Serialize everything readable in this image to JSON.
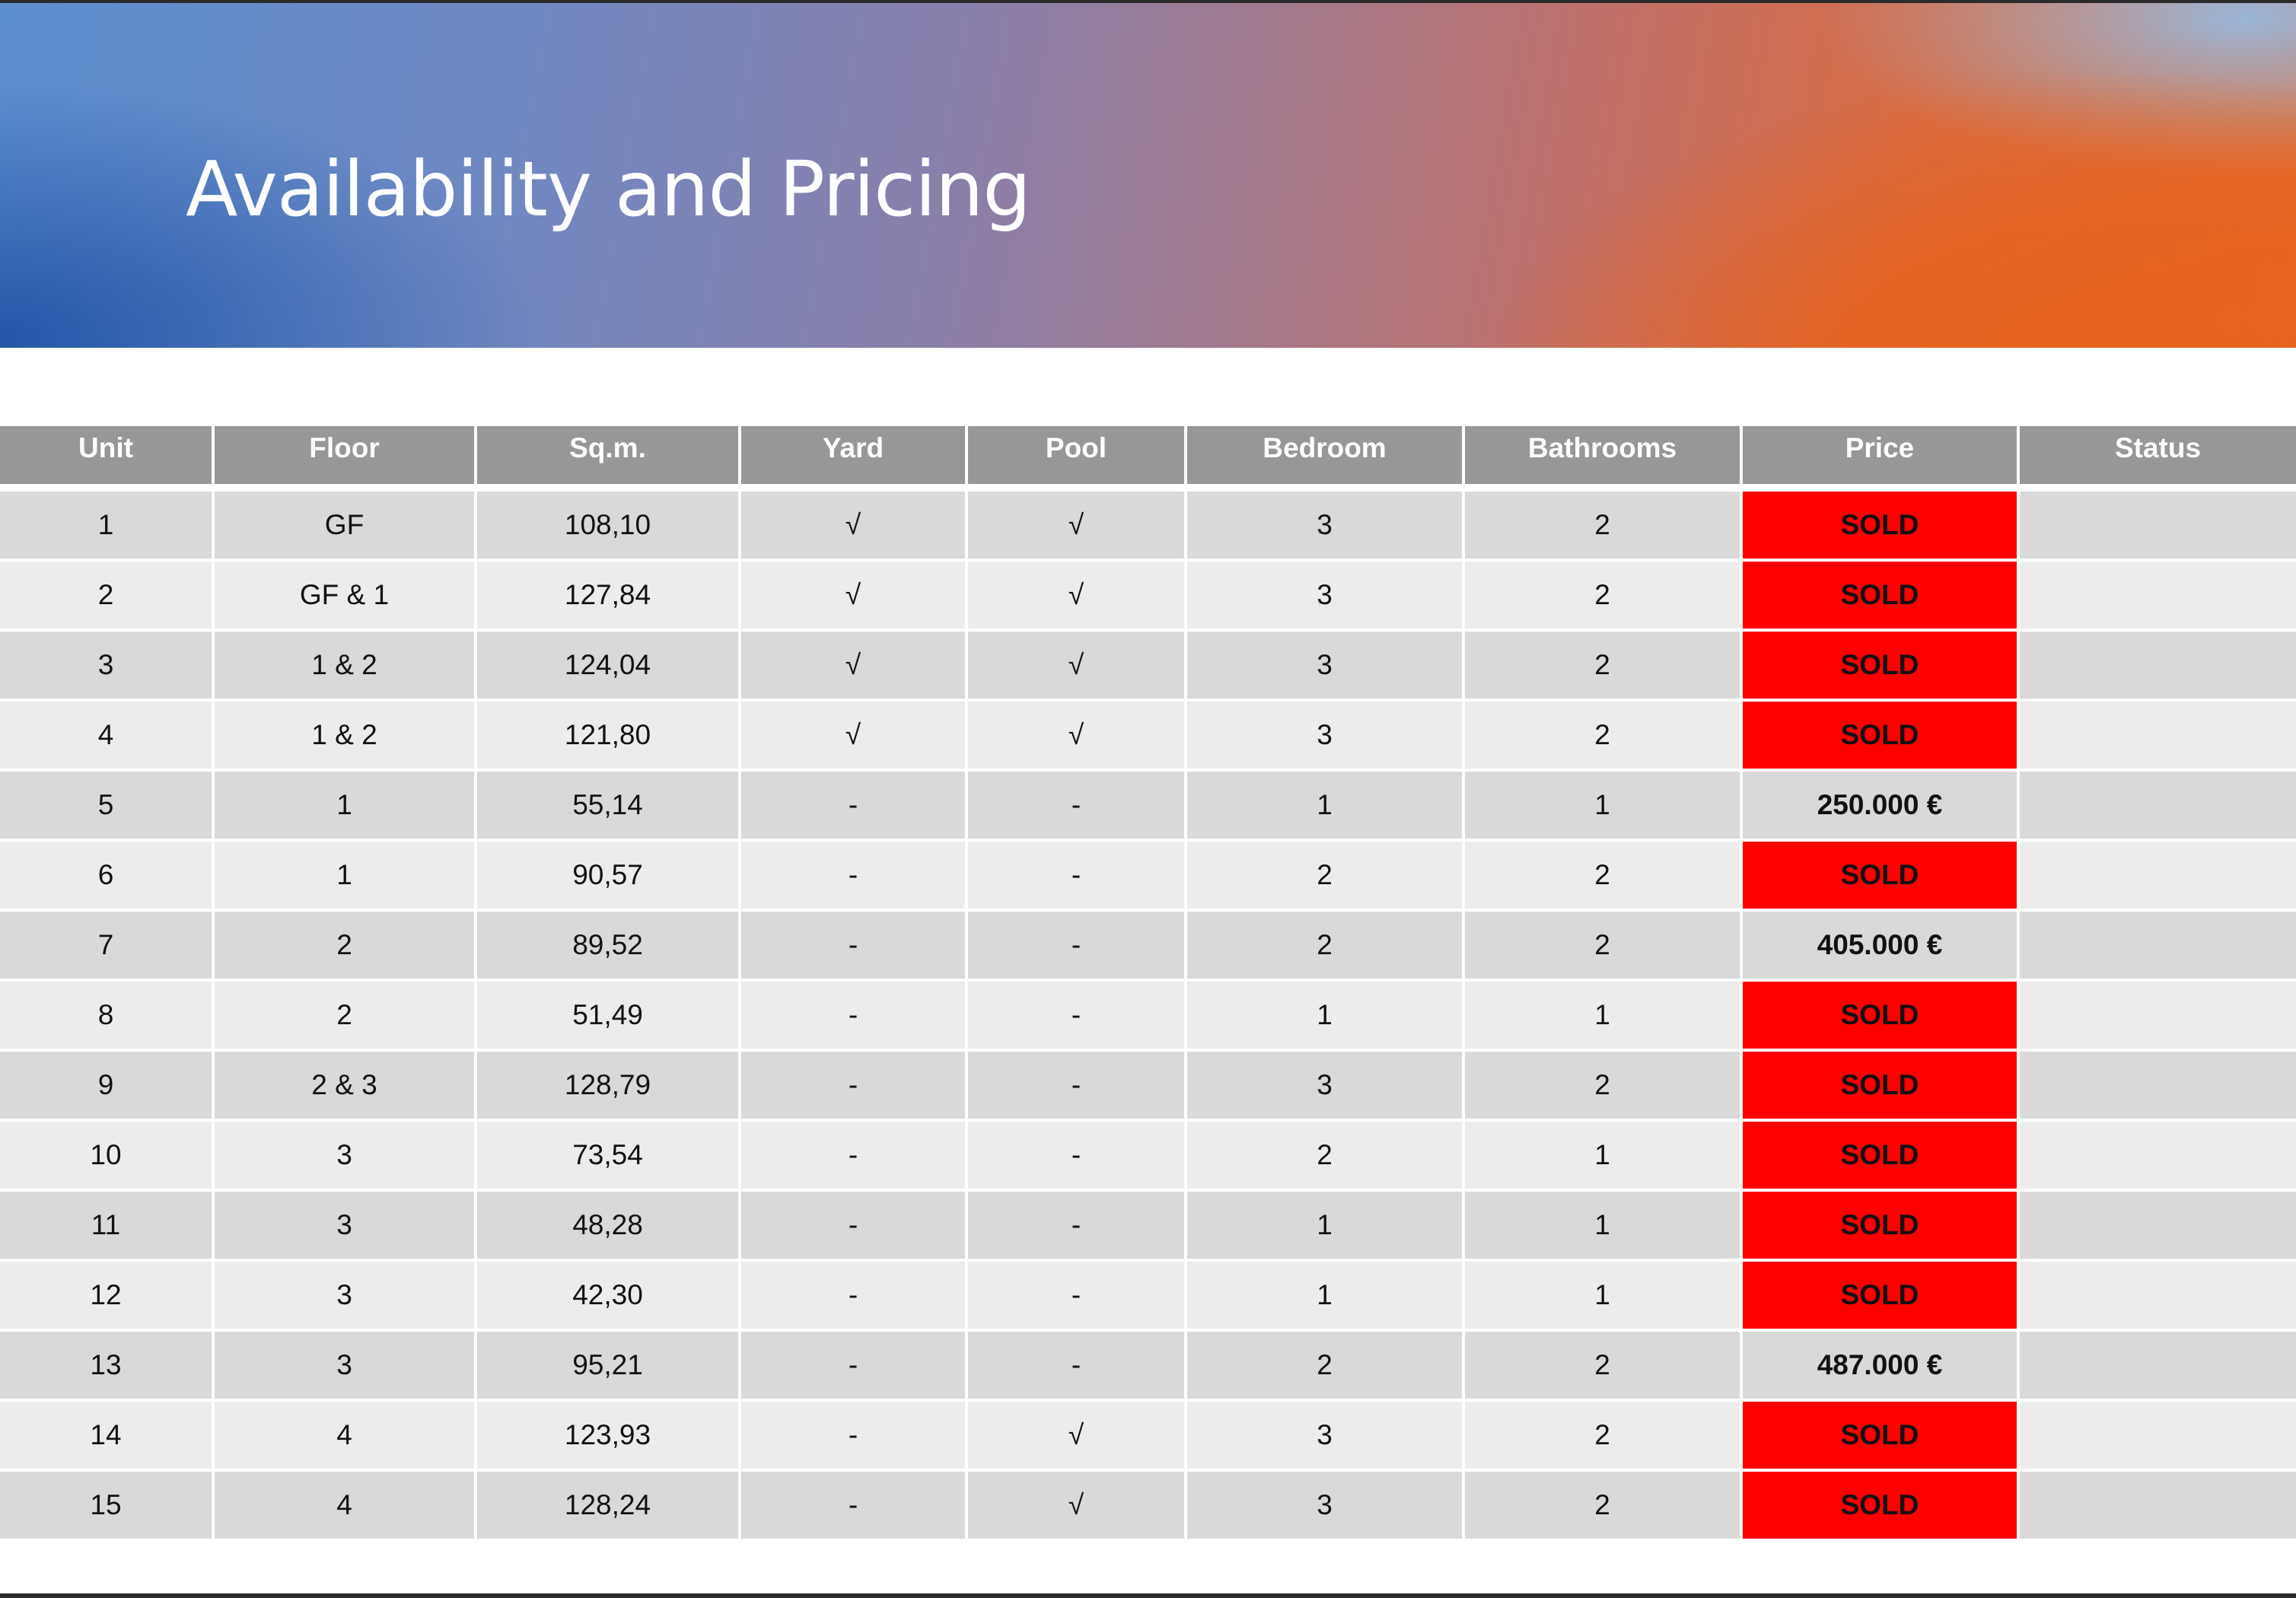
{
  "title": "Availability and Pricing",
  "colors": {
    "header_bg": "#979797",
    "row_dark": "#d9d9d9",
    "row_light": "#ececec",
    "sold_bg": "#fe0000"
  },
  "table": {
    "columns": [
      "Unit",
      "Floor",
      "Sq.m.",
      "Yard",
      "Pool",
      "Bedroom",
      "Bathrooms",
      "Price",
      "Status"
    ],
    "rows": [
      {
        "unit": "1",
        "floor": "GF",
        "sqm": "108,10",
        "yard": "√",
        "pool": "√",
        "bedroom": "3",
        "bathrooms": "2",
        "price": "SOLD",
        "sold": true,
        "status": ""
      },
      {
        "unit": "2",
        "floor": "GF & 1",
        "sqm": "127,84",
        "yard": "√",
        "pool": "√",
        "bedroom": "3",
        "bathrooms": "2",
        "price": "SOLD",
        "sold": true,
        "status": ""
      },
      {
        "unit": "3",
        "floor": "1 & 2",
        "sqm": "124,04",
        "yard": "√",
        "pool": "√",
        "bedroom": "3",
        "bathrooms": "2",
        "price": "SOLD",
        "sold": true,
        "status": ""
      },
      {
        "unit": "4",
        "floor": "1 & 2",
        "sqm": "121,80",
        "yard": "√",
        "pool": "√",
        "bedroom": "3",
        "bathrooms": "2",
        "price": "SOLD",
        "sold": true,
        "status": ""
      },
      {
        "unit": "5",
        "floor": "1",
        "sqm": "55,14",
        "yard": "-",
        "pool": "-",
        "bedroom": "1",
        "bathrooms": "1",
        "price": "250.000 €",
        "sold": false,
        "status": ""
      },
      {
        "unit": "6",
        "floor": "1",
        "sqm": "90,57",
        "yard": "-",
        "pool": "-",
        "bedroom": "2",
        "bathrooms": "2",
        "price": "SOLD",
        "sold": true,
        "status": ""
      },
      {
        "unit": "7",
        "floor": "2",
        "sqm": "89,52",
        "yard": "-",
        "pool": "-",
        "bedroom": "2",
        "bathrooms": "2",
        "price": "405.000 €",
        "sold": false,
        "status": ""
      },
      {
        "unit": "8",
        "floor": "2",
        "sqm": "51,49",
        "yard": "-",
        "pool": "-",
        "bedroom": "1",
        "bathrooms": "1",
        "price": "SOLD",
        "sold": true,
        "status": ""
      },
      {
        "unit": "9",
        "floor": "2 & 3",
        "sqm": "128,79",
        "yard": "-",
        "pool": "-",
        "bedroom": "3",
        "bathrooms": "2",
        "price": "SOLD",
        "sold": true,
        "status": ""
      },
      {
        "unit": "10",
        "floor": "3",
        "sqm": "73,54",
        "yard": "-",
        "pool": "-",
        "bedroom": "2",
        "bathrooms": "1",
        "price": "SOLD",
        "sold": true,
        "status": ""
      },
      {
        "unit": "11",
        "floor": "3",
        "sqm": "48,28",
        "yard": "-",
        "pool": "-",
        "bedroom": "1",
        "bathrooms": "1",
        "price": "SOLD",
        "sold": true,
        "status": ""
      },
      {
        "unit": "12",
        "floor": "3",
        "sqm": "42,30",
        "yard": "-",
        "pool": "-",
        "bedroom": "1",
        "bathrooms": "1",
        "price": "SOLD",
        "sold": true,
        "status": ""
      },
      {
        "unit": "13",
        "floor": "3",
        "sqm": "95,21",
        "yard": "-",
        "pool": "-",
        "bedroom": "2",
        "bathrooms": "2",
        "price": "487.000 €",
        "sold": false,
        "status": ""
      },
      {
        "unit": "14",
        "floor": "4",
        "sqm": "123,93",
        "yard": "-",
        "pool": "√",
        "bedroom": "3",
        "bathrooms": "2",
        "price": "SOLD",
        "sold": true,
        "status": ""
      },
      {
        "unit": "15",
        "floor": "4",
        "sqm": "128,24",
        "yard": "-",
        "pool": "√",
        "bedroom": "3",
        "bathrooms": "2",
        "price": "SOLD",
        "sold": true,
        "status": ""
      }
    ]
  }
}
